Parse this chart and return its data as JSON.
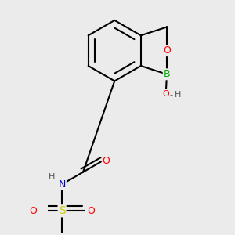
{
  "bg_color": "#ebebeb",
  "bond_color": "#000000",
  "atom_colors": {
    "B": "#00aa00",
    "O": "#ff0000",
    "N": "#0000cc",
    "S": "#cccc00",
    "C": "#000000",
    "H": "#555555"
  },
  "bond_width": 1.5
}
